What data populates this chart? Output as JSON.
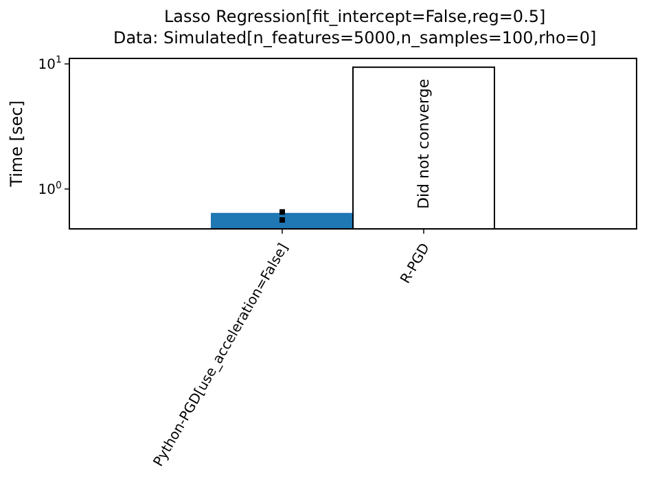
{
  "chart_data": {
    "type": "bar",
    "title": "Lasso Regression[fit_intercept=False,reg=0.5]",
    "subtitle": "Data: Simulated[n_features=5000,n_samples=100,rho=0]",
    "ylabel": "Time [sec]",
    "categories": [
      "Python-PGD[use_acceleration=False]",
      "R-PGD"
    ],
    "series": [
      {
        "values": [
          0.64,
          9.4
        ],
        "colors": [
          "#1f77b4",
          "#ffffff"
        ]
      },
      {
        "type": "scatter",
        "x": [
          "Python-PGD[use_acceleration=False]",
          "Python-PGD[use_acceleration=False]"
        ],
        "values": [
          0.66,
          0.57
        ],
        "color": "#000000",
        "marker": "square"
      }
    ],
    "annotations": [
      "Did not converge"
    ],
    "log": "y",
    "ylim": [
      0.49,
      10.9
    ],
    "yticks": [
      {
        "value": 1,
        "label": "10$^{0}$"
      },
      {
        "value": 10,
        "label": "10$^{1}$"
      }
    ],
    "grid": false
  }
}
